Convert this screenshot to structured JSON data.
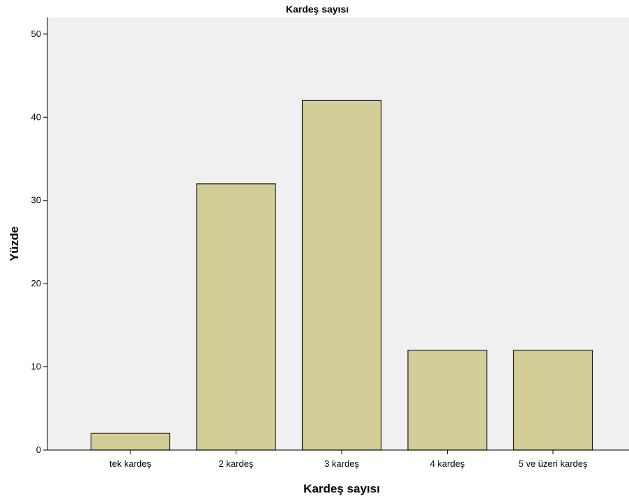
{
  "chart_data": {
    "type": "bar",
    "title": "Kardeş sayısı",
    "xlabel": "Kardeş sayısı",
    "ylabel": "Yüzde",
    "categories": [
      "tek kardeş",
      "2 kardeş",
      "3 kardeş",
      "4 kardeş",
      "5 ve üzeri kardeş"
    ],
    "values": [
      2,
      32,
      42,
      12,
      12
    ],
    "ylim": [
      0,
      52
    ],
    "yticks": [
      0,
      10,
      20,
      30,
      40,
      50
    ],
    "grid": false,
    "legend": "none",
    "colors": {
      "bar_fill": "#d3ce97",
      "bar_stroke": "#1a1a1a",
      "plot_background": "#f0f0f0",
      "axis": "#000000"
    }
  }
}
